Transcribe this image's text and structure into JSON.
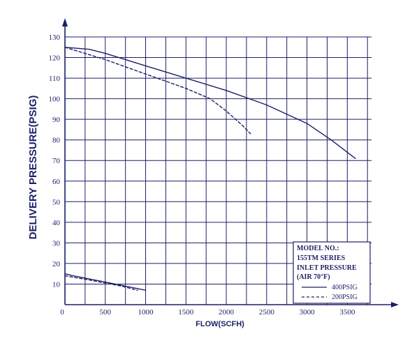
{
  "chart_data": {
    "type": "line",
    "title": "",
    "xlabel": "FLOW(SCFH)",
    "ylabel": "DELIVERY PRESSURE(PSIG)",
    "xlim": [
      0,
      3800
    ],
    "ylim": [
      0,
      130
    ],
    "x_ticks": [
      0,
      500,
      1000,
      1500,
      2000,
      2500,
      3000,
      3500
    ],
    "y_ticks": [
      10,
      20,
      30,
      40,
      50,
      60,
      70,
      80,
      90,
      100,
      110,
      120,
      130
    ],
    "grid": true,
    "legend": {
      "position": "bottom-right",
      "heading": [
        "MODEL NO.:",
        "155TM SERIES",
        "INLET PRESSURE",
        "(AIR 70°F)"
      ]
    },
    "series": [
      {
        "name": "400PSIG",
        "style": "solid",
        "points": [
          [
            0,
            125
          ],
          [
            300,
            124
          ],
          [
            500,
            122
          ],
          [
            1000,
            116
          ],
          [
            1500,
            110
          ],
          [
            2000,
            104
          ],
          [
            2500,
            97
          ],
          [
            3000,
            88
          ],
          [
            3300,
            80
          ],
          [
            3600,
            71
          ]
        ]
      },
      {
        "name": "200PSIG",
        "style": "dashed",
        "points": [
          [
            0,
            125
          ],
          [
            500,
            119
          ],
          [
            1000,
            112
          ],
          [
            1500,
            105
          ],
          [
            1800,
            100
          ],
          [
            2000,
            94
          ],
          [
            2200,
            87
          ],
          [
            2300,
            83
          ]
        ]
      },
      {
        "name": "400PSIG",
        "style": "solid",
        "points": [
          [
            0,
            15
          ],
          [
            100,
            14
          ],
          [
            500,
            11
          ],
          [
            1000,
            7
          ]
        ]
      },
      {
        "name": "200PSIG",
        "style": "dashed",
        "points": [
          [
            0,
            14
          ],
          [
            300,
            12
          ],
          [
            700,
            9
          ],
          [
            900,
            7
          ]
        ]
      }
    ]
  }
}
